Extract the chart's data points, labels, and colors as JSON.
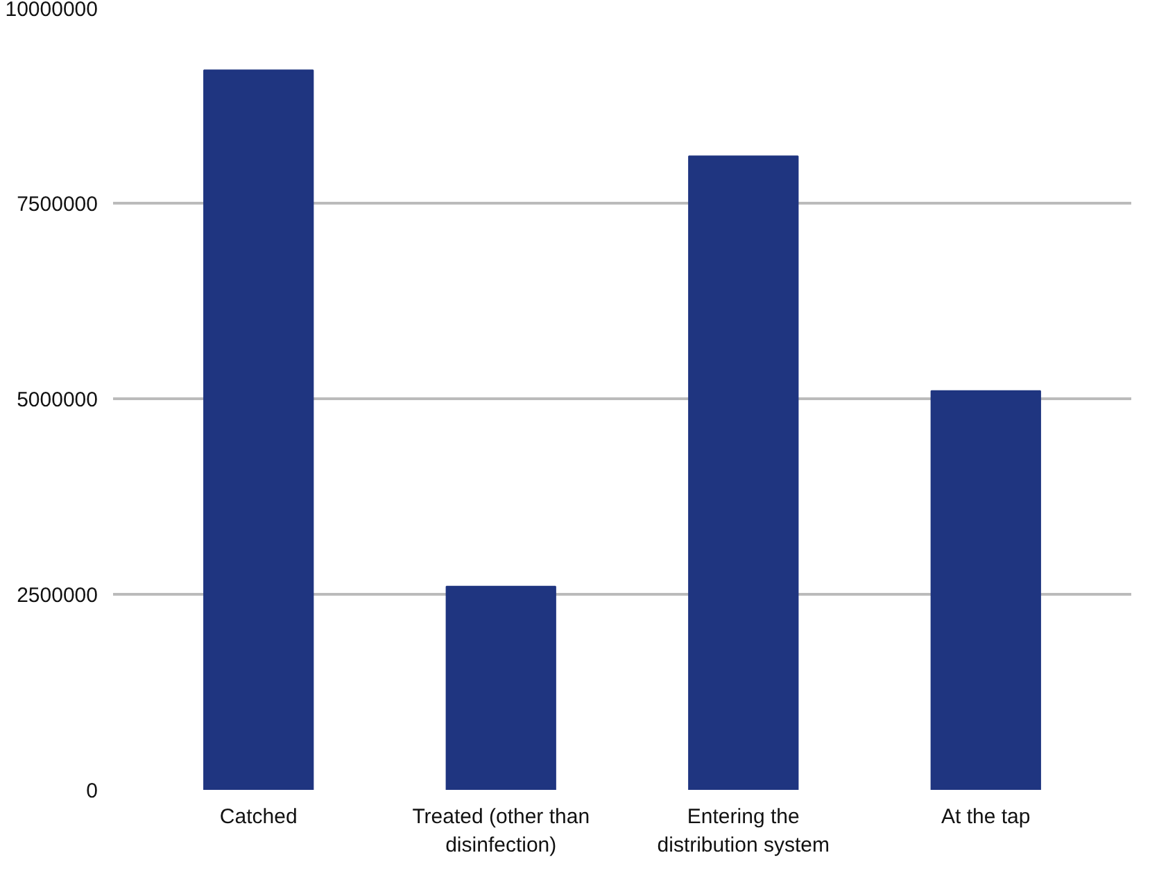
{
  "chart_data": {
    "type": "bar",
    "categories": [
      "Catched",
      "Treated (other than disinfection)",
      "Entering the distribution system",
      "At the tap"
    ],
    "values": [
      9200000,
      2600000,
      8100000,
      5100000
    ],
    "color": "#1f3580",
    "ylim": [
      0,
      10000000
    ],
    "yticks": [
      0,
      2500000,
      5000000,
      7500000,
      10000000
    ],
    "grid": "y"
  }
}
